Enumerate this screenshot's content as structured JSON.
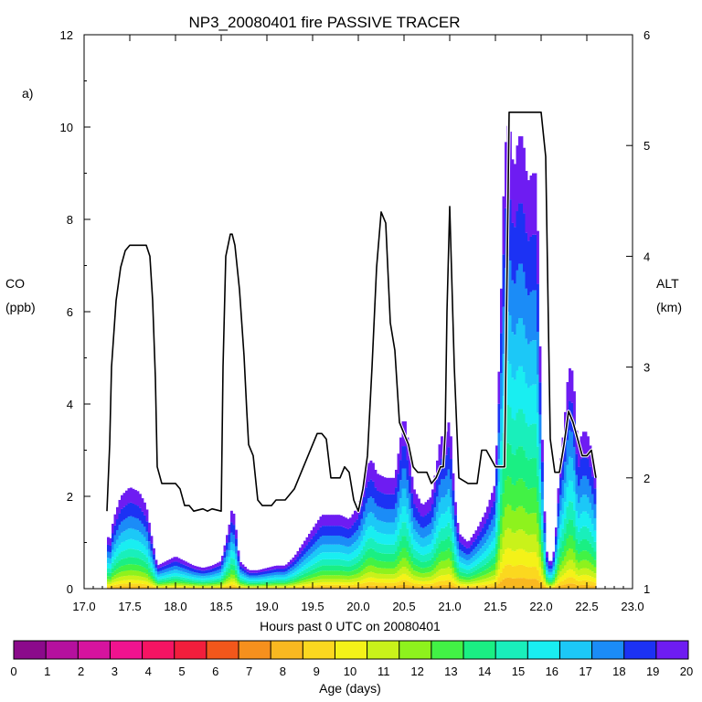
{
  "chart_data": {
    "type": "area",
    "title": "NP3_20080401 fire PASSIVE TRACER",
    "panel_label": "a)",
    "xlabel": "Hours past 0 UTC on 20080401",
    "ylabel_left": {
      "name": "CO",
      "unit": "(ppb)"
    },
    "ylabel_right": {
      "name": "ALT",
      "unit": "(km)"
    },
    "xlim": [
      17.0,
      23.0
    ],
    "ylim_left": [
      0,
      12
    ],
    "ylim_right": [
      1,
      6
    ],
    "x_ticks": [
      "17.0",
      "17.5",
      "18.0",
      "18.5",
      "19.0",
      "19.5",
      "20.0",
      "20.5",
      "21.0",
      "21.5",
      "22.0",
      "22.5",
      "23.0"
    ],
    "y_ticks_left": [
      "0",
      "2",
      "4",
      "6",
      "8",
      "10",
      "12"
    ],
    "y_ticks_right": [
      "1",
      "2",
      "3",
      "4",
      "5",
      "6"
    ],
    "colorbar": {
      "label": "Age (days)",
      "ticks": [
        "0",
        "1",
        "2",
        "3",
        "4",
        "5",
        "6",
        "7",
        "8",
        "9",
        "10",
        "11",
        "12",
        "13",
        "14",
        "15",
        "16",
        "17",
        "18",
        "19",
        "20"
      ],
      "colors": [
        "#8b0a8b",
        "#b5109e",
        "#d6139e",
        "#f0138f",
        "#f51463",
        "#f21e3c",
        "#f2571b",
        "#f6901d",
        "#f9b820",
        "#fbd81f",
        "#f4f218",
        "#c9f21a",
        "#8ef21d",
        "#42f245",
        "#1aef83",
        "#19efbb",
        "#19eef1",
        "#1cc8f7",
        "#1b8cf7",
        "#1c32f4",
        "#6e1cf2"
      ]
    },
    "total_co_series": {
      "name": "total CO",
      "x": [
        17.25,
        17.28,
        17.32,
        17.4,
        17.5,
        17.6,
        17.68,
        17.75,
        17.8,
        17.9,
        18.0,
        18.1,
        18.2,
        18.3,
        18.4,
        18.5,
        18.6,
        18.62,
        18.65,
        18.7,
        18.75,
        18.8,
        18.9,
        19.0,
        19.1,
        19.2,
        19.3,
        19.4,
        19.5,
        19.6,
        19.7,
        19.8,
        19.9,
        20.0,
        20.05,
        20.1,
        20.15,
        20.2,
        20.3,
        20.4,
        20.5,
        20.55,
        20.6,
        20.7,
        20.8,
        20.85,
        20.9,
        20.95,
        21.0,
        21.05,
        21.1,
        21.2,
        21.3,
        21.4,
        21.5,
        21.55,
        21.6,
        21.65,
        21.7,
        21.75,
        21.8,
        21.85,
        21.9,
        21.95,
        22.0,
        22.05,
        22.1,
        22.15,
        22.2,
        22.25,
        22.3,
        22.35,
        22.4,
        22.45,
        22.5,
        22.55,
        22.6
      ],
      "y": [
        1.2,
        1.0,
        1.5,
        2.0,
        2.2,
        2.1,
        1.8,
        1.0,
        0.5,
        0.6,
        0.7,
        0.6,
        0.5,
        0.45,
        0.5,
        0.6,
        1.5,
        1.8,
        1.5,
        0.6,
        0.5,
        0.4,
        0.4,
        0.45,
        0.5,
        0.5,
        0.7,
        1.0,
        1.3,
        1.6,
        1.6,
        1.6,
        1.5,
        1.8,
        2.2,
        2.7,
        2.8,
        2.5,
        2.4,
        2.4,
        3.8,
        3.1,
        2.2,
        1.8,
        2.0,
        2.6,
        3.3,
        3.3,
        3.7,
        2.1,
        1.2,
        1.0,
        1.3,
        1.7,
        2.3,
        5.5,
        9.5,
        10.2,
        9.0,
        9.8,
        9.8,
        8.8,
        9.0,
        9.0,
        4.0,
        0.9,
        0.5,
        0.9,
        2.6,
        3.5,
        4.8,
        4.7,
        3.0,
        3.4,
        3.4,
        3.0,
        2.4
      ]
    },
    "altitude_series": {
      "name": "ALT",
      "x": [
        17.25,
        17.28,
        17.3,
        17.35,
        17.4,
        17.45,
        17.5,
        17.6,
        17.68,
        17.72,
        17.75,
        17.78,
        17.8,
        17.85,
        17.9,
        18.0,
        18.05,
        18.1,
        18.15,
        18.2,
        18.3,
        18.35,
        18.4,
        18.5,
        18.52,
        18.55,
        18.6,
        18.62,
        18.65,
        18.7,
        18.75,
        18.78,
        18.8,
        18.85,
        18.9,
        18.95,
        19.0,
        19.05,
        19.1,
        19.2,
        19.3,
        19.4,
        19.5,
        19.55,
        19.6,
        19.65,
        19.7,
        19.75,
        19.8,
        19.85,
        19.9,
        19.95,
        20.0,
        20.05,
        20.1,
        20.15,
        20.2,
        20.25,
        20.3,
        20.35,
        20.4,
        20.45,
        20.5,
        20.55,
        20.6,
        20.65,
        20.7,
        20.75,
        20.8,
        20.85,
        20.9,
        20.93,
        20.95,
        20.97,
        21.0,
        21.05,
        21.1,
        21.2,
        21.3,
        21.35,
        21.4,
        21.5,
        21.55,
        21.6,
        21.65,
        21.7,
        21.8,
        21.9,
        21.95,
        22.0,
        22.05,
        22.1,
        22.15,
        22.2,
        22.25,
        22.3,
        22.35,
        22.4,
        22.45,
        22.5,
        22.55,
        22.6
      ],
      "y": [
        1.7,
        2.3,
        3.0,
        3.6,
        3.9,
        4.05,
        4.1,
        4.1,
        4.1,
        4.0,
        3.6,
        2.9,
        2.1,
        1.95,
        1.95,
        1.95,
        1.9,
        1.75,
        1.75,
        1.7,
        1.72,
        1.7,
        1.72,
        1.7,
        3.0,
        4.0,
        4.2,
        4.2,
        4.1,
        3.7,
        3.1,
        2.6,
        2.3,
        2.2,
        1.8,
        1.75,
        1.75,
        1.75,
        1.8,
        1.8,
        1.9,
        2.1,
        2.3,
        2.4,
        2.4,
        2.35,
        2.0,
        2.0,
        2.0,
        2.1,
        2.05,
        1.8,
        1.7,
        1.9,
        2.2,
        3.0,
        3.9,
        4.4,
        4.3,
        3.4,
        3.15,
        2.5,
        2.4,
        2.3,
        2.1,
        2.05,
        2.05,
        2.05,
        1.95,
        2.0,
        2.1,
        2.1,
        2.4,
        3.5,
        4.45,
        3.0,
        2.0,
        1.95,
        1.95,
        2.25,
        2.25,
        2.1,
        2.1,
        2.1,
        5.3,
        5.3,
        5.3,
        5.3,
        5.3,
        5.3,
        4.9,
        2.35,
        2.05,
        2.05,
        2.3,
        2.6,
        2.5,
        2.35,
        2.2,
        2.2,
        2.25,
        2.0
      ]
    }
  }
}
